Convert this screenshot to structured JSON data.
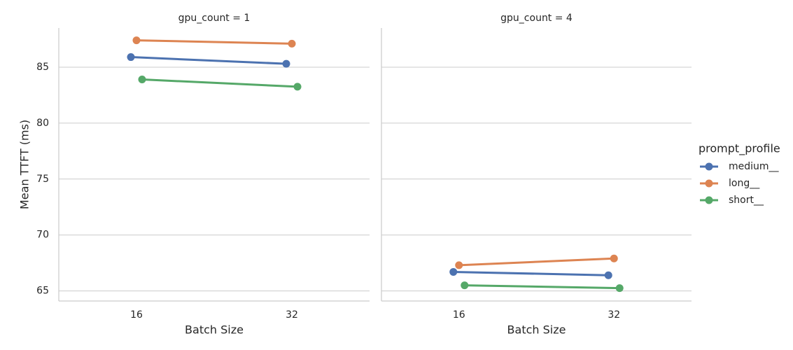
{
  "chart_data": [
    {
      "type": "line",
      "title": "gpu_count = 1",
      "x_label": "Batch Size",
      "y_label": "Mean TTFT (ms)",
      "legend_title": "prompt_profile",
      "legend_position": "right",
      "categories": [
        "16",
        "32"
      ],
      "series": [
        {
          "name": "medium__",
          "color": "#4c72b0",
          "values": [
            85.9,
            85.3
          ]
        },
        {
          "name": "long__",
          "color": "#dd8452",
          "values": [
            87.4,
            87.1
          ]
        },
        {
          "name": "short__",
          "color": "#55a868",
          "values": [
            83.9,
            83.25
          ]
        }
      ],
      "ylim": [
        64.1,
        88.5
      ],
      "yticks": [
        65,
        70,
        75,
        80,
        85
      ],
      "grid": true
    },
    {
      "type": "line",
      "title": "gpu_count = 4",
      "x_label": "Batch Size",
      "categories": [
        "16",
        "32"
      ],
      "series": [
        {
          "color": "#4c72b0",
          "values": [
            66.7,
            66.4
          ]
        },
        {
          "color": "#dd8452",
          "values": [
            67.3,
            67.9
          ]
        },
        {
          "color": "#55a868",
          "values": [
            65.5,
            65.25
          ]
        }
      ],
      "ylim": [
        64.1,
        88.5
      ],
      "yticks": [
        65,
        70,
        75,
        80,
        85
      ],
      "grid": true
    }
  ]
}
